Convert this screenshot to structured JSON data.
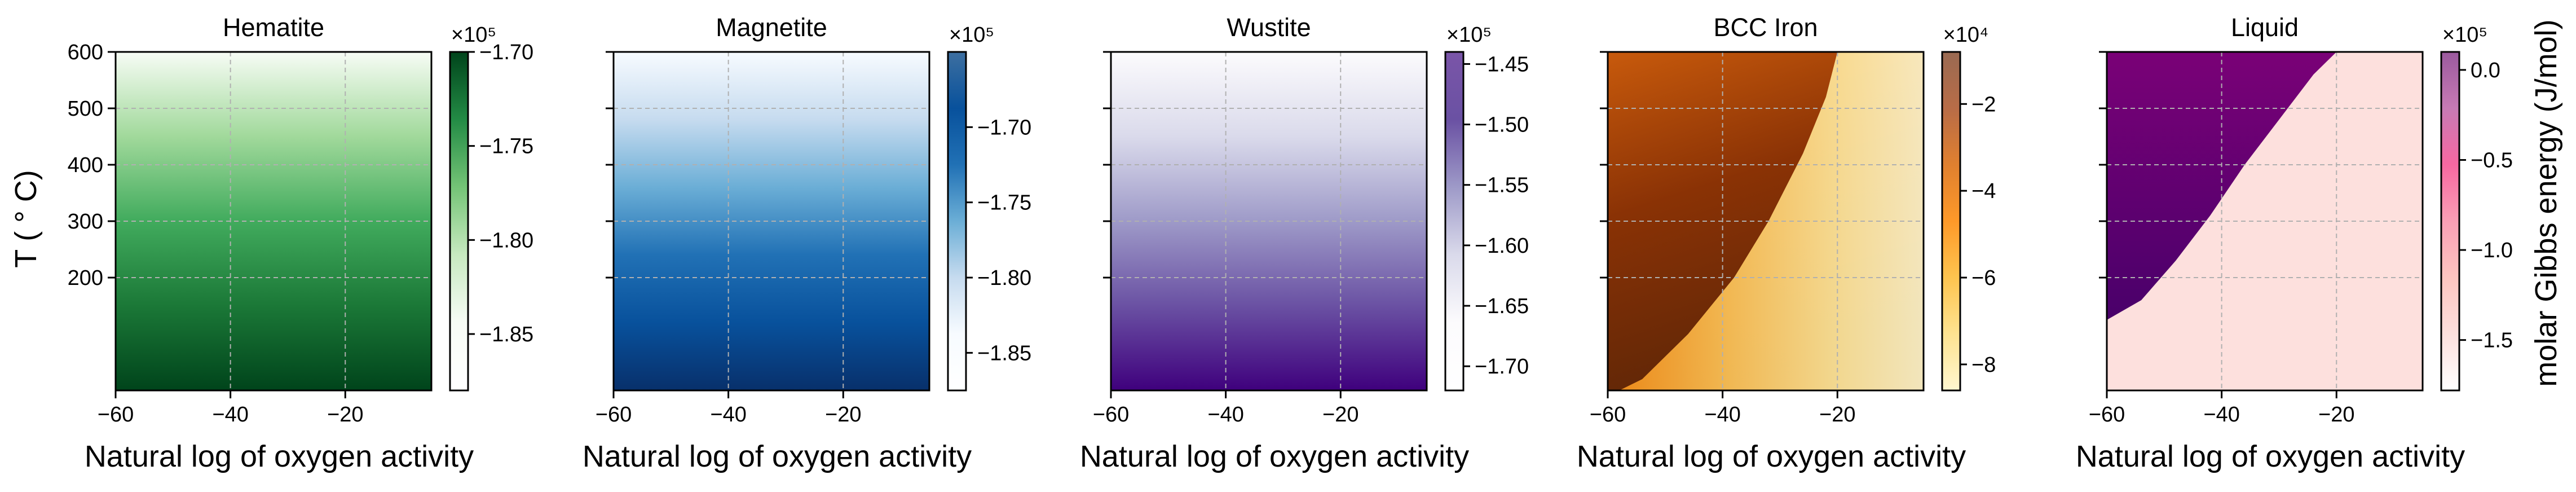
{
  "figure": {
    "ylabel": "T ($^\\circ$C)",
    "ylabel_display": "T ( ° C)",
    "xlabel": "Natural log of oxygen activity",
    "colorbar_label": "molar Gibbs energy (J/mol)"
  },
  "chart_data": [
    {
      "type": "heatmap",
      "title": "Hematite",
      "xlabel": "Natural log of oxygen activity",
      "ylabel": "T ( ° C)",
      "xlim": [
        -60,
        -5
      ],
      "ylim": [
        0,
        600
      ],
      "xticks": [
        -60,
        -40,
        -20
      ],
      "yticks": [
        200,
        300,
        400,
        500,
        600
      ],
      "grid": true,
      "colormap": "Greens",
      "colors": [
        "#00441b",
        "#1b7837",
        "#41ab5d",
        "#a1d99b",
        "#f7fcf5"
      ],
      "value_field": "varies with temperature only (higher T → lower G)",
      "colorbar": {
        "range": [
          -188000.0,
          -170000.0
        ],
        "ticks": [
          "−1.70",
          "−1.75",
          "−1.80",
          "−1.85"
        ],
        "tick_values": [
          -1.7,
          -1.75,
          -1.8,
          -1.85
        ],
        "multiplier": "×10⁵",
        "reverse": true
      }
    },
    {
      "type": "heatmap",
      "title": "Magnetite",
      "xlabel": "Natural log of oxygen activity",
      "xlim": [
        -60,
        -5
      ],
      "ylim": [
        0,
        600
      ],
      "xticks": [
        -60,
        -40,
        -20
      ],
      "grid": true,
      "colormap": "Blues",
      "colors": [
        "#08306b",
        "#08519c",
        "#2171b5",
        "#6baed6",
        "#c6dbef",
        "#f7fbff"
      ],
      "value_field": "varies with temperature only",
      "colorbar": {
        "range": [
          -187500.0,
          -165000.0
        ],
        "ticks": [
          "−1.70",
          "−1.75",
          "−1.80",
          "−1.85"
        ],
        "tick_values": [
          -1.7,
          -1.75,
          -1.8,
          -1.85
        ],
        "multiplier": "×10⁵",
        "reverse": true
      }
    },
    {
      "type": "heatmap",
      "title": "Wustite",
      "xlabel": "Natural log of oxygen activity",
      "xlim": [
        -60,
        -5
      ],
      "ylim": [
        0,
        600
      ],
      "xticks": [
        -60,
        -40,
        -20
      ],
      "grid": true,
      "colormap": "Purples",
      "colors": [
        "#3f007d",
        "#6a51a3",
        "#9e9ac8",
        "#dadaeb",
        "#fcfbfd"
      ],
      "value_field": "varies with temperature only",
      "colorbar": {
        "range": [
          -172000.0,
          -144000.0
        ],
        "ticks": [
          "−1.45",
          "−1.50",
          "−1.55",
          "−1.60",
          "−1.65",
          "−1.70"
        ],
        "tick_values": [
          -1.45,
          -1.5,
          -1.55,
          -1.6,
          -1.65,
          -1.7
        ],
        "multiplier": "×10⁵",
        "reverse": true
      }
    },
    {
      "type": "heatmap",
      "title": "BCC Iron",
      "xlabel": "Natural log of oxygen activity",
      "xlim": [
        -60,
        -5
      ],
      "ylim": [
        0,
        600
      ],
      "xticks": [
        -60,
        -40,
        -20
      ],
      "grid": true,
      "colormap": "YlOrBr",
      "colors": [
        "#ffffe5",
        "#fee391",
        "#fec44f",
        "#fe9929",
        "#ec7014",
        "#cc4c02",
        "#993404",
        "#662506"
      ],
      "value_field": "darkest at low T and low oxygen activity; bright band sweeping to upper right",
      "colorbar": {
        "range": [
          -86000.0,
          -8000.0
        ],
        "ticks": [
          "−2",
          "−4",
          "−6",
          "−8"
        ],
        "tick_values": [
          -2,
          -4,
          -6,
          -8
        ],
        "multiplier": "×10⁴",
        "reverse": false
      }
    },
    {
      "type": "heatmap",
      "title": "Liquid",
      "xlabel": "Natural log of oxygen activity",
      "xlim": [
        -60,
        -5
      ],
      "ylim": [
        0,
        600
      ],
      "xticks": [
        -60,
        -40,
        -20
      ],
      "grid": true,
      "colormap": "RdPu",
      "colors": [
        "#fde0dd",
        "#fa9fb5",
        "#dd3497",
        "#7a0177",
        "#49006a"
      ],
      "boundary": [
        [
          -60,
          125
        ],
        [
          -54,
          160
        ],
        [
          -48,
          230
        ],
        [
          -42,
          310
        ],
        [
          -36,
          400
        ],
        [
          -30,
          480
        ],
        [
          -24,
          560
        ],
        [
          -20,
          600
        ]
      ],
      "value_field": "dark purple region left/top of boundary, near-constant pale pink elsewhere",
      "colorbar": {
        "range": [
          -178000.0,
          10000.0
        ],
        "ticks": [
          "0.0",
          "−0.5",
          "−1.0",
          "−1.5"
        ],
        "tick_values": [
          0.0,
          -0.5,
          -1.0,
          -1.5
        ],
        "multiplier": "×10⁵",
        "reverse": false
      }
    }
  ]
}
